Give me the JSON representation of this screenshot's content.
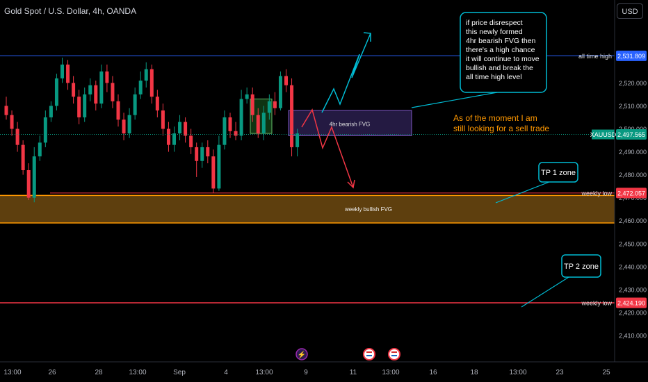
{
  "header": {
    "symbol_title": "Gold Spot / U.S. Dollar, 4h, OANDA",
    "currency_label": "USD"
  },
  "chart_data": {
    "type": "candlestick",
    "title": "Gold Spot / U.S. Dollar, 4h, OANDA",
    "ylim": [
      2405,
      2538
    ],
    "y_ticks": [
      "2,410.000",
      "2,420.000",
      "2,430.000",
      "2,440.000",
      "2,450.000",
      "2,460.000",
      "2,470.000",
      "2,480.000",
      "2,490.000",
      "2,500.000",
      "2,510.000",
      "2,520.000"
    ],
    "x_ticks": [
      "13:00",
      "26",
      "28",
      "13:00",
      "Sep",
      "4",
      "13:00",
      "9",
      "11",
      "13:00",
      "16",
      "18",
      "13:00",
      "23",
      "25"
    ],
    "candles": [
      [
        2510,
        2506,
        2514,
        2504
      ],
      [
        2506,
        2500,
        2508,
        2497
      ],
      [
        2500,
        2493,
        2503,
        2490
      ],
      [
        2493,
        2482,
        2495,
        2480
      ],
      [
        2482,
        2470,
        2485,
        2469
      ],
      [
        2470,
        2488,
        2492,
        2468
      ],
      [
        2488,
        2494,
        2497,
        2486
      ],
      [
        2494,
        2505,
        2508,
        2492
      ],
      [
        2505,
        2510,
        2512,
        2503
      ],
      [
        2510,
        2522,
        2524,
        2508
      ],
      [
        2522,
        2528,
        2531,
        2520
      ],
      [
        2528,
        2520,
        2530,
        2517
      ],
      [
        2520,
        2514,
        2523,
        2511
      ],
      [
        2514,
        2505,
        2517,
        2502
      ],
      [
        2505,
        2515,
        2518,
        2503
      ],
      [
        2515,
        2519,
        2522,
        2512
      ],
      [
        2519,
        2511,
        2521,
        2508
      ],
      [
        2511,
        2525,
        2528,
        2509
      ],
      [
        2525,
        2520,
        2528,
        2516
      ],
      [
        2520,
        2512,
        2523,
        2509
      ],
      [
        2512,
        2504,
        2515,
        2501
      ],
      [
        2504,
        2498,
        2507,
        2495
      ],
      [
        2498,
        2506,
        2509,
        2496
      ],
      [
        2506,
        2515,
        2518,
        2504
      ],
      [
        2515,
        2521,
        2525,
        2513
      ],
      [
        2521,
        2526,
        2529,
        2518
      ],
      [
        2526,
        2514,
        2528,
        2511
      ],
      [
        2514,
        2508,
        2517,
        2505
      ],
      [
        2508,
        2500,
        2511,
        2497
      ],
      [
        2500,
        2493,
        2503,
        2490
      ],
      [
        2493,
        2498,
        2501,
        2490
      ],
      [
        2498,
        2503,
        2506,
        2495
      ],
      [
        2503,
        2497,
        2505,
        2494
      ],
      [
        2497,
        2492,
        2500,
        2489
      ],
      [
        2492,
        2486,
        2494,
        2479
      ],
      [
        2486,
        2492,
        2494,
        2483
      ],
      [
        2492,
        2488,
        2495,
        2485
      ],
      [
        2488,
        2474,
        2491,
        2472
      ],
      [
        2474,
        2493,
        2497,
        2473
      ],
      [
        2493,
        2505,
        2508,
        2491
      ],
      [
        2505,
        2499,
        2507,
        2496
      ],
      [
        2499,
        2497,
        2503,
        2495
      ],
      [
        2497,
        2513,
        2517,
        2495
      ],
      [
        2513,
        2515,
        2518,
        2511
      ],
      [
        2515,
        2506,
        2518,
        2503
      ],
      [
        2506,
        2498,
        2509,
        2496
      ],
      [
        2498,
        2507,
        2510,
        2495
      ],
      [
        2507,
        2512,
        2515,
        2504
      ],
      [
        2512,
        2509,
        2516,
        2506
      ],
      [
        2509,
        2523,
        2525,
        2508
      ],
      [
        2523,
        2519,
        2526,
        2516
      ],
      [
        2519,
        2492,
        2522,
        2488
      ],
      [
        2492,
        2498,
        2500,
        2488
      ]
    ],
    "price_lines": [
      {
        "label": "all time high",
        "value": 2531.809,
        "value_text": "2,531.809",
        "color": "#2962ff"
      },
      {
        "label": "XAUUSD",
        "value": 2497.565,
        "value_text": "2,497.565",
        "color": "#089981"
      },
      {
        "label": "weekly low",
        "value": 2472.057,
        "value_text": "2,472.057",
        "color": "#f23645"
      },
      {
        "label": "weekly low",
        "value": 2424.19,
        "value_text": "2,424.190",
        "color": "#f23645"
      }
    ],
    "zones": [
      {
        "label": "weekly bullish FVG",
        "from": 2459,
        "to": 2471,
        "color": "#ff9800"
      },
      {
        "label": "4hr bearish FVG",
        "from": 2497,
        "to": 2508,
        "color": "#7e57c2"
      }
    ],
    "annotations": {
      "bull_note": [
        "if price disrespect",
        "this newly formed",
        "4hr bearish FVG then",
        "there's a high chance",
        "it will continue to move",
        "bullish and break the",
        "all time high level"
      ],
      "sell_note": [
        "As of the moment I am",
        "still looking for a sell trade"
      ],
      "tp1": "TP 1 zone",
      "tp2": "TP 2 zone"
    },
    "colors": {
      "up": "#089981",
      "down": "#f23645",
      "accent_text": "#ff9800",
      "callout": "#00bcd4"
    },
    "grid": false,
    "legend": "none"
  }
}
